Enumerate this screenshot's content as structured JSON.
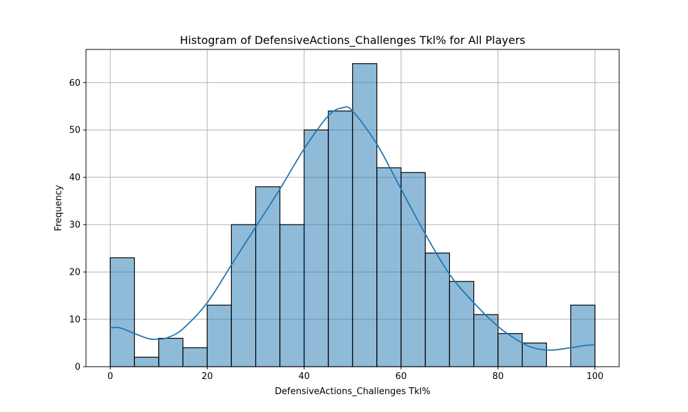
{
  "chart_data": {
    "type": "bar",
    "title": "Histogram of DefensiveActions_Challenges Tkl% for All Players",
    "xlabel": "DefensiveActions_Challenges Tkl%",
    "ylabel": "Frequency",
    "xlim": [
      -5,
      105
    ],
    "ylim": [
      0,
      67
    ],
    "xticks": [
      0,
      20,
      40,
      60,
      80,
      100
    ],
    "yticks": [
      0,
      10,
      20,
      30,
      40,
      50,
      60
    ],
    "grid": true,
    "bar_color": "#1f77b4",
    "bins": [
      {
        "start": 0,
        "end": 5,
        "count": 23
      },
      {
        "start": 5,
        "end": 10,
        "count": 2
      },
      {
        "start": 10,
        "end": 15,
        "count": 6
      },
      {
        "start": 15,
        "end": 20,
        "count": 4
      },
      {
        "start": 20,
        "end": 25,
        "count": 13
      },
      {
        "start": 25,
        "end": 30,
        "count": 30
      },
      {
        "start": 30,
        "end": 35,
        "count": 38
      },
      {
        "start": 35,
        "end": 40,
        "count": 30
      },
      {
        "start": 40,
        "end": 45,
        "count": 50
      },
      {
        "start": 45,
        "end": 50,
        "count": 54
      },
      {
        "start": 50,
        "end": 55,
        "count": 64
      },
      {
        "start": 55,
        "end": 60,
        "count": 42
      },
      {
        "start": 60,
        "end": 65,
        "count": 41
      },
      {
        "start": 65,
        "end": 70,
        "count": 24
      },
      {
        "start": 70,
        "end": 75,
        "count": 18
      },
      {
        "start": 75,
        "end": 80,
        "count": 11
      },
      {
        "start": 80,
        "end": 85,
        "count": 7
      },
      {
        "start": 85,
        "end": 90,
        "count": 5
      },
      {
        "start": 90,
        "end": 95,
        "count": 0
      },
      {
        "start": 95,
        "end": 100,
        "count": 13
      }
    ],
    "kde": {
      "color": "#1f77b4",
      "x": [
        0,
        2,
        5,
        8,
        10,
        12,
        15,
        20,
        25,
        30,
        35,
        40,
        45,
        48,
        50,
        55,
        60,
        65,
        70,
        75,
        80,
        85,
        88,
        91,
        95,
        98,
        100
      ],
      "y": [
        8.2,
        8.2,
        7.0,
        5.9,
        5.8,
        6.2,
        8.0,
        13.5,
        21.5,
        29.5,
        37.5,
        46.0,
        53.0,
        54.7,
        54.0,
        47.0,
        37.5,
        28.0,
        19.5,
        13.5,
        8.5,
        5.0,
        3.8,
        3.5,
        4.0,
        4.5,
        4.6
      ]
    }
  }
}
